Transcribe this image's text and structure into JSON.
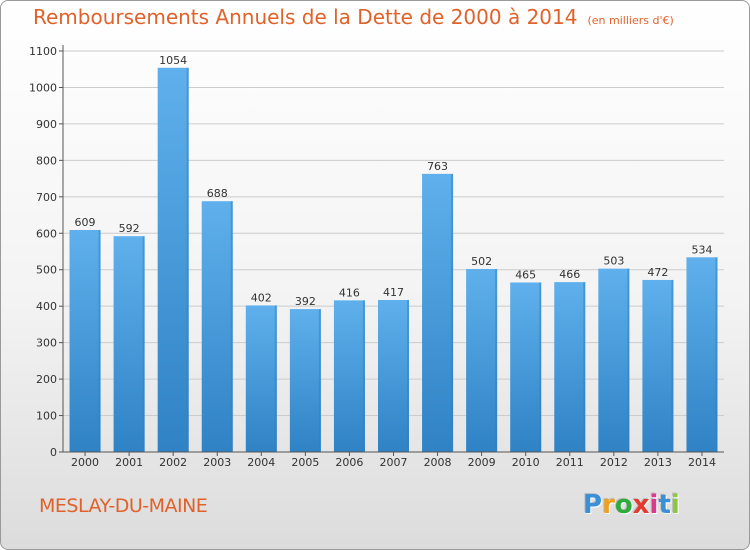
{
  "title": "Remboursements Annuels de la Dette de 2000 à 2014",
  "subtitle": "(en milliers d'€)",
  "city": "MESLAY-DU-MAINE",
  "logo": {
    "letters": [
      "P",
      "r",
      "o",
      "x",
      "i",
      "t",
      "i"
    ],
    "colors": [
      "#3a8fd6",
      "#f0a020",
      "#2faa3c",
      "#e23b2f",
      "#d93a8c",
      "#3a8fd6",
      "#8dc63f"
    ]
  },
  "colors": {
    "bar": "#57a8e6",
    "bar_dark": "#2d7fc1",
    "title": "#e0622a",
    "grid": "#cccccc"
  },
  "chart_data": {
    "type": "bar",
    "categories": [
      "2000",
      "2001",
      "2002",
      "2003",
      "2004",
      "2005",
      "2006",
      "2007",
      "2008",
      "2009",
      "2010",
      "2011",
      "2012",
      "2013",
      "2014"
    ],
    "values": [
      609,
      592,
      1054,
      688,
      402,
      392,
      416,
      417,
      763,
      502,
      465,
      466,
      503,
      472,
      534
    ],
    "ylim": [
      0,
      1100
    ],
    "yticks": [
      0,
      100,
      200,
      300,
      400,
      500,
      600,
      700,
      800,
      900,
      1000,
      1100
    ],
    "grid": true,
    "data_labels": true
  }
}
